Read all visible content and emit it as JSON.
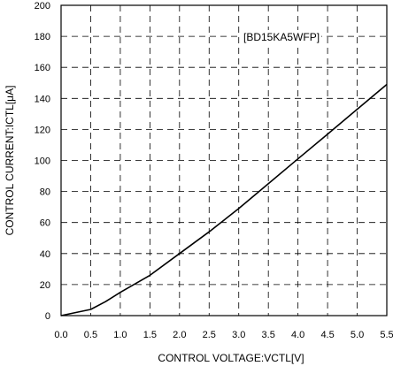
{
  "chart_data": {
    "type": "line",
    "title": "",
    "xlabel": "CONTROL VOLTAGE:VCTL[V]",
    "ylabel": "CONTROL CURRENT:ICTL[μA]",
    "xlim": [
      0,
      5.5
    ],
    "ylim": [
      0,
      200
    ],
    "x_ticks": [
      0.0,
      0.5,
      1.0,
      1.5,
      2.0,
      2.5,
      3.0,
      3.5,
      4.0,
      4.5,
      5.0,
      5.5
    ],
    "x_tick_labels": [
      "0.0",
      "0.5",
      "1.0",
      "1.5",
      "2.0",
      "2.5",
      "3.0",
      "3.5",
      "4.0",
      "4.5",
      "5.0",
      "5.5"
    ],
    "y_ticks": [
      0,
      20,
      40,
      60,
      80,
      100,
      120,
      140,
      160,
      180,
      200
    ],
    "y_tick_labels": [
      "0",
      "20",
      "40",
      "60",
      "80",
      "100",
      "120",
      "140",
      "160",
      "180",
      "200"
    ],
    "grid": true,
    "annotation": "[BD15KA5WFP]",
    "series": [
      {
        "name": "",
        "color": "#000000",
        "x": [
          0.0,
          0.25,
          0.5,
          0.75,
          1.0,
          1.5,
          2.0,
          2.5,
          3.0,
          3.5,
          4.0,
          4.5,
          5.0,
          5.5
        ],
        "y": [
          0,
          2,
          4,
          9,
          15,
          26,
          40,
          54,
          69,
          85,
          101,
          117,
          133,
          149
        ]
      }
    ]
  }
}
